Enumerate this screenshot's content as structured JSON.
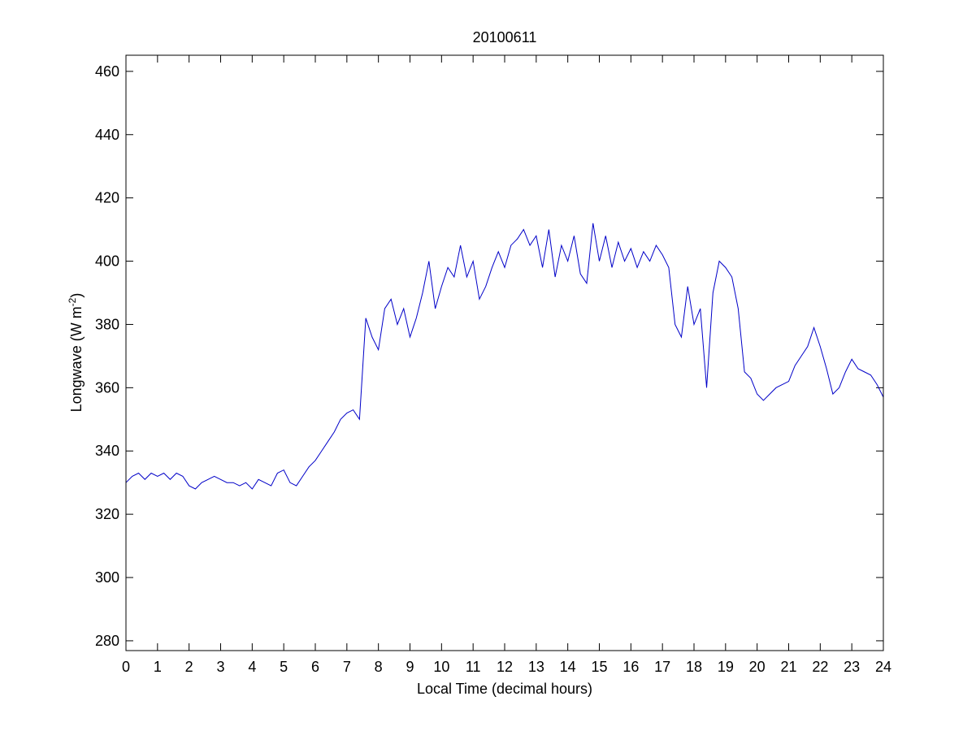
{
  "chart_data": {
    "type": "line",
    "title": "20100611",
    "xlabel": "Local Time (decimal hours)",
    "ylabel": [
      "Longwave (W m",
      "-2",
      ")"
    ],
    "x": [
      0,
      0.2,
      0.4,
      0.6,
      0.8,
      1,
      1.2,
      1.4,
      1.6,
      1.8,
      2,
      2.2,
      2.4,
      2.6,
      2.8,
      3,
      3.2,
      3.4,
      3.6,
      3.8,
      4,
      4.2,
      4.4,
      4.6,
      4.8,
      5,
      5.2,
      5.4,
      5.6,
      5.8,
      6,
      6.2,
      6.4,
      6.6,
      6.8,
      7,
      7.2,
      7.4,
      7.6,
      7.8,
      8,
      8.2,
      8.4,
      8.6,
      8.8,
      9,
      9.2,
      9.4,
      9.6,
      9.8,
      10,
      10.2,
      10.4,
      10.6,
      10.8,
      11,
      11.2,
      11.4,
      11.6,
      11.8,
      12,
      12.2,
      12.4,
      12.6,
      12.8,
      13,
      13.2,
      13.4,
      13.6,
      13.8,
      14,
      14.2,
      14.4,
      14.6,
      14.8,
      15,
      15.2,
      15.4,
      15.6,
      15.8,
      16,
      16.2,
      16.4,
      16.6,
      16.8,
      17,
      17.2,
      17.4,
      17.6,
      17.8,
      18,
      18.2,
      18.4,
      18.6,
      18.8,
      19,
      19.2,
      19.4,
      19.6,
      19.8,
      20,
      20.2,
      20.4,
      20.6,
      20.8,
      21,
      21.2,
      21.4,
      21.6,
      21.8,
      22,
      22.2,
      22.4,
      22.6,
      22.8,
      23,
      23.2,
      23.4,
      23.6,
      23.8,
      24
    ],
    "series": [
      {
        "color": "#0000c8",
        "values": [
          330,
          332,
          333,
          331,
          333,
          332,
          333,
          331,
          333,
          332,
          329,
          328,
          330,
          331,
          332,
          331,
          330,
          330,
          329,
          330,
          328,
          331,
          330,
          329,
          333,
          334,
          330,
          329,
          332,
          335,
          337,
          340,
          343,
          346,
          350,
          352,
          353,
          350,
          382,
          376,
          372,
          385,
          388,
          380,
          385,
          376,
          382,
          390,
          400,
          385,
          392,
          398,
          395,
          405,
          395,
          400,
          388,
          392,
          398,
          403,
          398,
          405,
          407,
          410,
          405,
          408,
          398,
          410,
          395,
          405,
          400,
          408,
          396,
          393,
          412,
          400,
          408,
          398,
          406,
          400,
          404,
          398,
          403,
          400,
          405,
          402,
          398,
          380,
          376,
          392,
          380,
          385,
          360,
          390,
          400,
          398,
          395,
          385,
          365,
          363,
          358,
          356,
          358,
          360,
          361,
          362,
          367,
          370,
          373,
          379,
          373,
          366,
          358,
          360,
          365,
          369,
          366,
          365,
          364,
          361,
          357
        ]
      }
    ],
    "xlim": [
      0,
      24
    ],
    "xticks": [
      0,
      1,
      2,
      3,
      4,
      5,
      6,
      7,
      8,
      9,
      10,
      11,
      12,
      13,
      14,
      15,
      16,
      17,
      18,
      19,
      20,
      21,
      22,
      23,
      24
    ],
    "ylim": [
      276.9,
      465.1
    ],
    "yticks": [
      280,
      300,
      320,
      340,
      360,
      380,
      400,
      420,
      440,
      460
    ]
  }
}
